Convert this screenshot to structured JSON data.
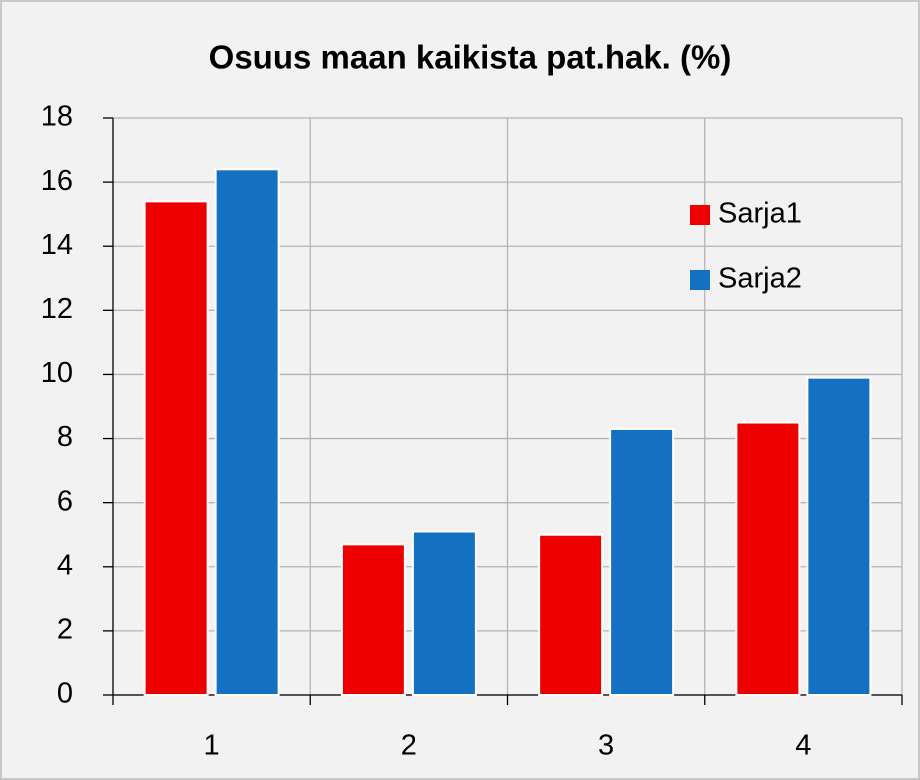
{
  "chart_data": {
    "type": "bar",
    "title": "Osuus maan kaikista pat.hak. (%)",
    "categories": [
      "1",
      "2",
      "3",
      "4"
    ],
    "series": [
      {
        "name": "Sarja1",
        "color": "#ee0000",
        "values": [
          15.4,
          4.7,
          5.0,
          8.5
        ]
      },
      {
        "name": "Sarja2",
        "color": "#1470c0",
        "values": [
          16.4,
          5.1,
          8.3,
          9.9
        ]
      }
    ],
    "ylim": [
      0,
      18
    ],
    "yticks": [
      0,
      2,
      4,
      6,
      8,
      10,
      12,
      14,
      16,
      18
    ],
    "grid": true,
    "legend": "upper right"
  }
}
